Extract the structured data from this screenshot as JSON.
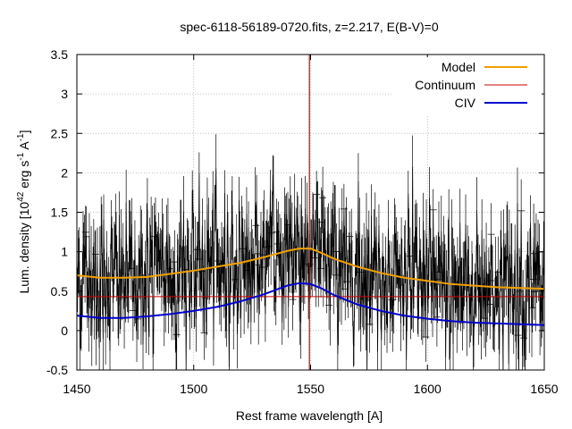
{
  "chart_data": {
    "type": "line",
    "title": "spec-6118-56189-0720.fits, z=2.217, E(B-V)=0",
    "xlabel": "Rest frame wavelength [A]",
    "ylabel": {
      "base": "Lum. density [10",
      "exp1": "42",
      "mid": " erg s",
      "exp2": "-1",
      "mid2": " A",
      "exp3": "-1",
      "end": "]"
    },
    "xlim": [
      1450,
      1650
    ],
    "ylim": [
      -0.5,
      3.5
    ],
    "xticks": [
      1450,
      1500,
      1550,
      1600,
      1650
    ],
    "xtick_labels": [
      "1450",
      "1500",
      "1550",
      "1600",
      "1650"
    ],
    "yticks": [
      -0.5,
      0,
      0.5,
      1,
      1.5,
      2,
      2.5,
      3,
      3.5
    ],
    "ytick_labels": [
      "-0.5",
      "0",
      "0.5",
      "1",
      "1.5",
      "2",
      "2.5",
      "3",
      "3.5"
    ],
    "grid": true,
    "legend_position": "top-right",
    "vertical_line": {
      "x": 1549.5,
      "color": "#cc0000"
    },
    "data_noise": {
      "x_start": 1450,
      "x_end": 1650,
      "n_points": 750,
      "noise_sigma": 0.45,
      "errorbar_half": 0.35,
      "color": "#000000"
    },
    "series": [
      {
        "name": "Model",
        "color": "#f0a000",
        "x": [
          1450,
          1460,
          1470,
          1480,
          1490,
          1500,
          1510,
          1520,
          1530,
          1540,
          1545,
          1550,
          1555,
          1560,
          1570,
          1580,
          1590,
          1600,
          1610,
          1620,
          1630,
          1640,
          1650
        ],
        "y": [
          0.7,
          0.67,
          0.67,
          0.68,
          0.72,
          0.76,
          0.81,
          0.86,
          0.93,
          1.01,
          1.04,
          1.04,
          0.98,
          0.91,
          0.81,
          0.73,
          0.67,
          0.63,
          0.59,
          0.57,
          0.55,
          0.54,
          0.53
        ]
      },
      {
        "name": "Continuum",
        "color": "#cc0000",
        "x": [
          1450,
          1650
        ],
        "y": [
          0.43,
          0.43
        ]
      },
      {
        "name": "CIV",
        "color": "#0000cc",
        "x": [
          1450,
          1460,
          1470,
          1480,
          1490,
          1500,
          1510,
          1520,
          1530,
          1540,
          1545,
          1550,
          1555,
          1560,
          1570,
          1580,
          1590,
          1600,
          1610,
          1620,
          1630,
          1640,
          1650
        ],
        "y": [
          0.19,
          0.16,
          0.16,
          0.18,
          0.21,
          0.25,
          0.3,
          0.37,
          0.46,
          0.57,
          0.6,
          0.59,
          0.53,
          0.45,
          0.33,
          0.25,
          0.19,
          0.15,
          0.12,
          0.1,
          0.09,
          0.08,
          0.07
        ]
      }
    ]
  }
}
